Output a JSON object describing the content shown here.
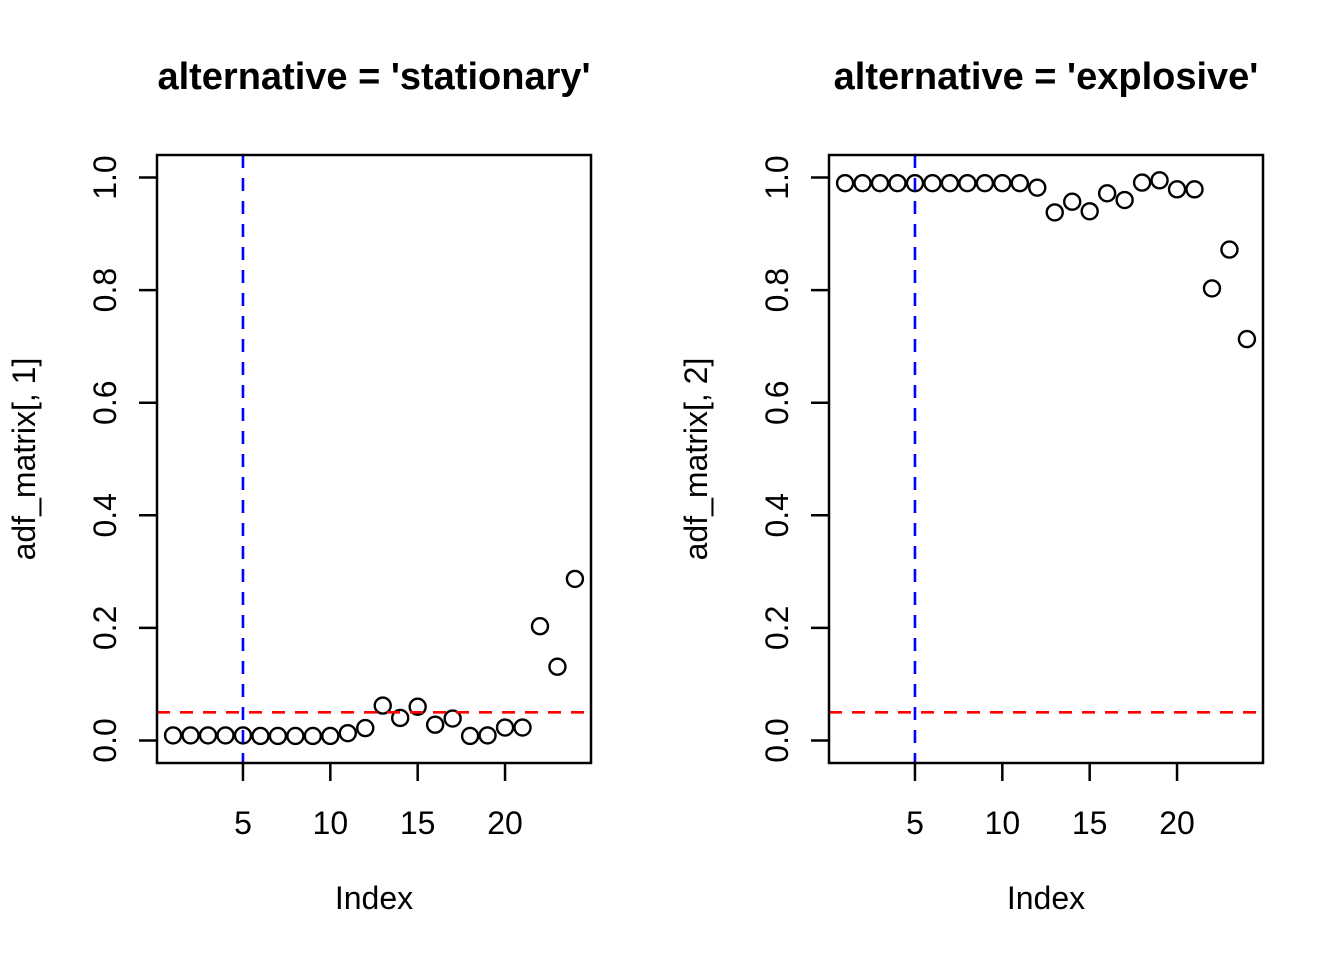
{
  "figure": {
    "background": "#ffffff",
    "colors": {
      "points": "#000000",
      "frame": "#000000",
      "text": "#000000",
      "vline": "#0000ff",
      "hline": "#ff0000"
    }
  },
  "chart_data": [
    {
      "type": "scatter",
      "title": "alternative = 'stationary'",
      "xlabel": "Index",
      "ylabel": "adf_matrix[, 1]",
      "marker": "open-circle",
      "grid": false,
      "legend": null,
      "x": [
        1,
        2,
        3,
        4,
        5,
        6,
        7,
        8,
        9,
        10,
        11,
        12,
        13,
        14,
        15,
        16,
        17,
        18,
        19,
        20,
        21,
        22,
        23,
        24
      ],
      "y": [
        0.009,
        0.009,
        0.009,
        0.009,
        0.009,
        0.008,
        0.008,
        0.008,
        0.008,
        0.008,
        0.013,
        0.022,
        0.062,
        0.04,
        0.06,
        0.028,
        0.039,
        0.008,
        0.009,
        0.023,
        0.023,
        0.203,
        0.131,
        0.287
      ],
      "xlim": [
        0.08,
        24.92
      ],
      "ylim": [
        -0.04,
        1.04
      ],
      "x_ticks": [
        5,
        10,
        15,
        20
      ],
      "x_tick_labels": [
        "5",
        "10",
        "15",
        "20"
      ],
      "y_ticks": [
        0,
        0.2,
        0.4,
        0.6,
        0.8,
        1.0
      ],
      "y_tick_labels": [
        "0.0",
        "0.2",
        "0.4",
        "0.6",
        "0.8",
        "1.0"
      ],
      "vline_x": 5,
      "hline_y": 0.05
    },
    {
      "type": "scatter",
      "title": "alternative = 'explosive'",
      "xlabel": "Index",
      "ylabel": "adf_matrix[, 2]",
      "marker": "open-circle",
      "grid": false,
      "legend": null,
      "x": [
        1,
        2,
        3,
        4,
        5,
        6,
        7,
        8,
        9,
        10,
        11,
        12,
        13,
        14,
        15,
        16,
        17,
        18,
        19,
        20,
        21,
        22,
        23,
        24
      ],
      "y": [
        0.99,
        0.99,
        0.99,
        0.99,
        0.99,
        0.99,
        0.99,
        0.99,
        0.99,
        0.99,
        0.99,
        0.982,
        0.938,
        0.957,
        0.94,
        0.972,
        0.96,
        0.991,
        0.995,
        0.979,
        0.979,
        0.803,
        0.872,
        0.713
      ],
      "xlim": [
        0.08,
        24.92
      ],
      "ylim": [
        -0.04,
        1.04
      ],
      "x_ticks": [
        5,
        10,
        15,
        20
      ],
      "x_tick_labels": [
        "5",
        "10",
        "15",
        "20"
      ],
      "y_ticks": [
        0,
        0.2,
        0.4,
        0.6,
        0.8,
        1.0
      ],
      "y_tick_labels": [
        "0.0",
        "0.2",
        "0.4",
        "0.6",
        "0.8",
        "1.0"
      ],
      "vline_x": 5,
      "hline_y": 0.05
    }
  ]
}
